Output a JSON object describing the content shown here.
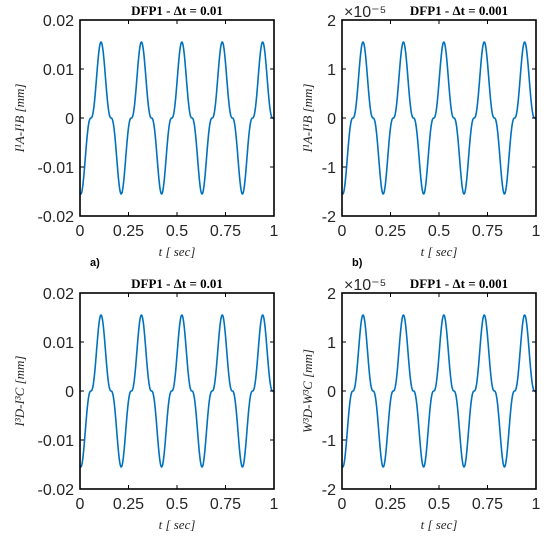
{
  "chart_data": [
    {
      "type": "line",
      "panel_label": "a)",
      "title": "DFP1 - Δt = 0.01",
      "xlabel": "t [ sec]",
      "ylabel": "I¹A-I¹B [mm]",
      "exponent_label": "",
      "xlim": [
        0,
        1
      ],
      "ylim": [
        -0.02,
        0.02
      ],
      "xticks": [
        "0",
        "0.25",
        "0.5",
        "0.75",
        "1"
      ],
      "yticks": [
        "-0.02",
        "-0.01",
        "0",
        "0.01",
        "0.02"
      ],
      "amplitude": 0.0155,
      "period": 0.2083,
      "color": "#0072BD",
      "grid": false
    },
    {
      "type": "line",
      "panel_label": "b)",
      "title": "DFP1 - Δt = 0.001",
      "xlabel": "t [ sec]",
      "ylabel": "I¹A-I¹B [mm]",
      "exponent_label": "×10⁻⁵",
      "xlim": [
        0,
        1
      ],
      "ylim": [
        -2,
        2
      ],
      "xticks": [
        "0",
        "0.25",
        "0.5",
        "0.75",
        "1"
      ],
      "yticks": [
        "-2",
        "-1",
        "0",
        "1",
        "2"
      ],
      "amplitude": 1.55,
      "period": 0.2083,
      "color": "#0072BD",
      "grid": false
    },
    {
      "type": "line",
      "panel_label": "",
      "title": "DFP1 - Δt = 0.01",
      "xlabel": "t [ sec]",
      "ylabel": "I³D-I³C [mm]",
      "exponent_label": "",
      "xlim": [
        0,
        1
      ],
      "ylim": [
        -0.02,
        0.02
      ],
      "xticks": [
        "0",
        "0.25",
        "0.5",
        "0.75",
        "1"
      ],
      "yticks": [
        "-0.02",
        "-0.01",
        "0",
        "0.01",
        "0.02"
      ],
      "amplitude": 0.0155,
      "period": 0.2083,
      "color": "#0072BD",
      "grid": false
    },
    {
      "type": "line",
      "panel_label": "",
      "title": "DFP1 - Δt = 0.001",
      "xlabel": "t [ sec]",
      "ylabel": "W³D-W³C [mm]",
      "exponent_label": "×10⁻⁵",
      "xlim": [
        0,
        1
      ],
      "ylim": [
        -2,
        2
      ],
      "xticks": [
        "0",
        "0.25",
        "0.5",
        "0.75",
        "1"
      ],
      "yticks": [
        "-2",
        "-1",
        "0",
        "1",
        "2"
      ],
      "amplitude": 1.55,
      "period": 0.2083,
      "color": "#0072BD",
      "grid": false
    }
  ]
}
